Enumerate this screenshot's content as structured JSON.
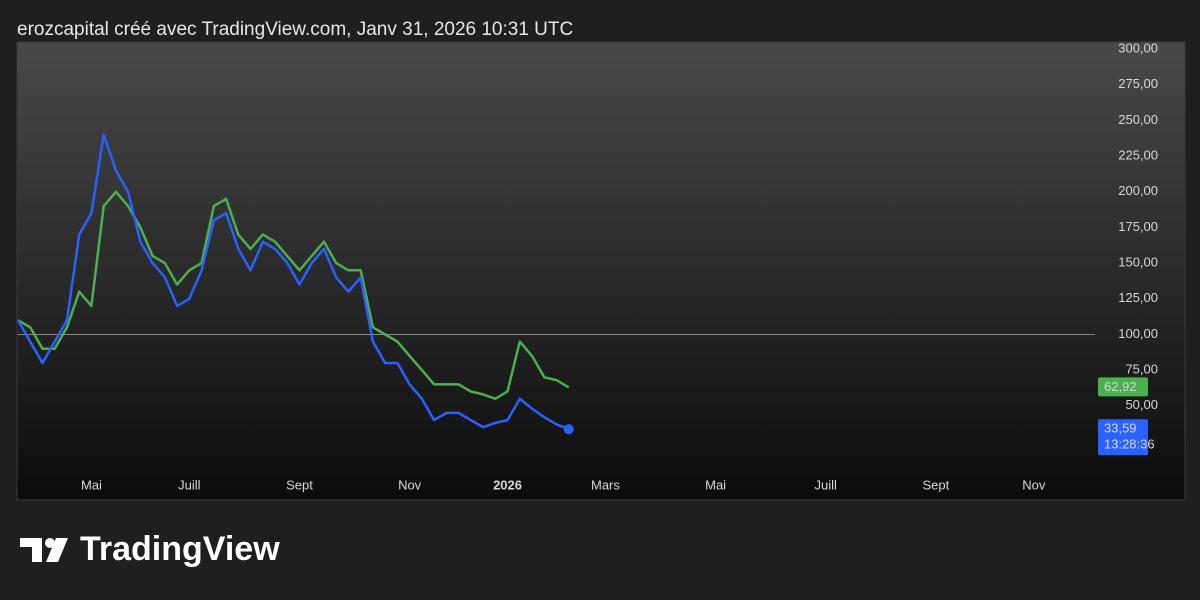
{
  "header": "erozcapital créé avec TradingView.com, Janv 31, 2026 10:31 UTC",
  "brand": "TradingView",
  "chart_data": {
    "type": "line",
    "categories": [
      null,
      null,
      null,
      null,
      null,
      null,
      "Mai",
      null,
      null,
      null,
      null,
      null,
      null,
      null,
      "Juill",
      null,
      null,
      null,
      null,
      null,
      null,
      null,
      null,
      "Sept",
      null,
      null,
      null,
      null,
      null,
      null,
      null,
      null,
      "Nov",
      null,
      null,
      null,
      null,
      null,
      null,
      null,
      "2026",
      null,
      null,
      null,
      null,
      null,
      null,
      null,
      "Mars",
      null,
      null,
      null,
      null,
      null,
      null,
      null,
      null,
      "Mai",
      null,
      null,
      null,
      null,
      null,
      null,
      null,
      null,
      "Juill",
      null,
      null,
      null,
      null,
      null,
      null,
      null,
      null,
      "Sept",
      null,
      null,
      null,
      null,
      null,
      null,
      null,
      "Nov",
      null,
      null,
      null,
      null,
      null
    ],
    "series": [
      {
        "color": "#4caf50",
        "last_label": "62,92",
        "values": [
          110,
          105,
          90,
          90,
          105,
          130,
          120,
          190,
          200,
          190,
          175,
          155,
          150,
          135,
          145,
          150,
          190,
          195,
          170,
          160,
          170,
          165,
          155,
          145,
          155,
          165,
          150,
          145,
          145,
          105,
          100,
          95,
          85,
          75,
          65,
          65,
          65,
          60,
          58,
          55,
          60,
          95,
          85,
          70,
          68,
          62.92,
          null,
          null,
          null,
          null,
          null,
          null,
          null,
          null,
          null,
          null,
          null,
          null,
          null,
          null,
          null,
          null,
          null,
          null,
          null,
          null,
          null,
          null,
          null,
          null,
          null,
          null,
          null,
          null,
          null,
          null,
          null,
          null,
          null,
          null,
          null,
          null,
          null,
          null,
          null,
          null,
          null,
          null,
          null
        ]
      },
      {
        "color": "#2962ff",
        "last_label": "33,59",
        "countdown": "13:28:36",
        "values": [
          110,
          95,
          80,
          95,
          110,
          170,
          185,
          240,
          215,
          200,
          165,
          150,
          140,
          120,
          125,
          145,
          180,
          185,
          160,
          145,
          165,
          160,
          150,
          135,
          150,
          160,
          140,
          130,
          140,
          95,
          80,
          80,
          65,
          55,
          40,
          45,
          45,
          40,
          35,
          38,
          40,
          55,
          48,
          42,
          37,
          33.59,
          null,
          null,
          null,
          null,
          null,
          null,
          null,
          null,
          null,
          null,
          null,
          null,
          null,
          null,
          null,
          null,
          null,
          null,
          null,
          null,
          null,
          null,
          null,
          null,
          null,
          null,
          null,
          null,
          null,
          null,
          null,
          null,
          null,
          null,
          null,
          null,
          null,
          null,
          null,
          null,
          null,
          null,
          null
        ]
      }
    ],
    "reference_line": 100,
    "ylim": [
      5,
      305
    ],
    "yticks": [
      {
        "value": 50,
        "label": "50,00"
      },
      {
        "value": 75,
        "label": "75,00"
      },
      {
        "value": 100,
        "label": "100,00"
      },
      {
        "value": 125,
        "label": "125,00"
      },
      {
        "value": 150,
        "label": "150,00"
      },
      {
        "value": 175,
        "label": "175,00"
      },
      {
        "value": 200,
        "label": "200,00"
      },
      {
        "value": 225,
        "label": "225,00"
      },
      {
        "value": 250,
        "label": "250,00"
      },
      {
        "value": 275,
        "label": "275,00"
      },
      {
        "value": 300,
        "label": "300,00"
      }
    ],
    "grid": false
  }
}
